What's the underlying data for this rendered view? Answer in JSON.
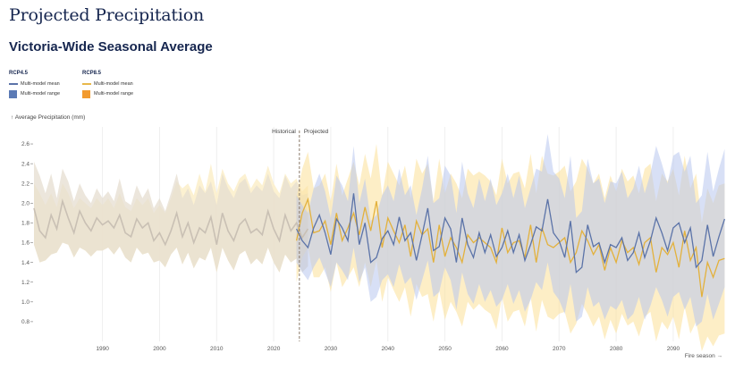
{
  "page": {
    "title": "Projected Precipitation",
    "subtitle": "Victoria-Wide Seasonal Average"
  },
  "legend": {
    "groups": [
      {
        "title": "RCP4.5",
        "mean_label": "Multi-model mean",
        "range_label": "Multi-model range",
        "mean_color": "#5b73a8",
        "range_color": "#5b7ab5"
      },
      {
        "title": "RCP8.5",
        "mean_label": "Multi-model mean",
        "range_label": "Multi-model range",
        "mean_color": "#e8b84a",
        "range_color": "#f29a2e"
      }
    ]
  },
  "chart_data": {
    "type": "area",
    "ylabel": "↑ Average Precipitation (mm)",
    "xlabel": "Fire season →",
    "xlim": [
      1978,
      2098
    ],
    "ylim": [
      0.6,
      2.7
    ],
    "x_ticks": [
      1990,
      2000,
      2010,
      2020,
      2030,
      2040,
      2050,
      2060,
      2070,
      2080,
      2090
    ],
    "y_ticks": [
      0.8,
      1.0,
      1.2,
      1.4,
      1.6,
      1.8,
      2.0,
      2.2,
      2.4,
      2.6
    ],
    "grid": "vertical",
    "divider": {
      "x": 2024.5,
      "left_label": "Historical",
      "right_label": "Projected"
    },
    "colors": {
      "hist_mean": "#c9c0b4",
      "hist_band_beige": "#e6ddd0",
      "hist_band_yellow": "#fbefc9",
      "rcp45_mean": "#5b73a8",
      "rcp45_band": "#b8c7ee",
      "rcp85_mean": "#e3b13c",
      "rcp85_band": "#fbe2a0"
    },
    "historical": {
      "start_year": 1978,
      "mean": [
        1.95,
        1.72,
        1.65,
        1.88,
        1.74,
        2.02,
        1.85,
        1.7,
        1.92,
        1.8,
        1.72,
        1.85,
        1.78,
        1.82,
        1.75,
        1.88,
        1.7,
        1.66,
        1.84,
        1.75,
        1.8,
        1.62,
        1.7,
        1.58,
        1.72,
        1.9,
        1.66,
        1.8,
        1.6,
        1.75,
        1.7,
        1.86,
        1.58,
        1.9,
        1.72,
        1.62,
        1.78,
        1.84,
        1.7,
        1.74,
        1.68,
        1.92,
        1.74,
        1.62,
        1.88,
        1.72,
        1.8,
        1.65,
        1.74
      ],
      "lower": [
        1.58,
        1.4,
        1.42,
        1.48,
        1.5,
        1.6,
        1.58,
        1.45,
        1.55,
        1.52,
        1.46,
        1.52,
        1.52,
        1.55,
        1.48,
        1.56,
        1.45,
        1.4,
        1.55,
        1.48,
        1.5,
        1.4,
        1.42,
        1.35,
        1.48,
        1.55,
        1.38,
        1.5,
        1.34,
        1.45,
        1.42,
        1.55,
        1.3,
        1.55,
        1.42,
        1.32,
        1.48,
        1.52,
        1.38,
        1.44,
        1.38,
        1.55,
        1.4,
        1.3,
        1.48,
        1.4,
        1.44,
        1.3,
        1.36
      ],
      "upper": [
        2.42,
        2.28,
        2.1,
        2.3,
        2.05,
        2.35,
        2.22,
        2.02,
        2.2,
        2.08,
        2.0,
        2.15,
        2.05,
        2.12,
        2.02,
        2.25,
        2.02,
        1.98,
        2.18,
        2.05,
        2.15,
        1.95,
        2.05,
        1.92,
        2.1,
        2.3,
        2.05,
        2.15,
        1.98,
        2.18,
        2.1,
        2.22,
        1.98,
        2.3,
        2.15,
        2.05,
        2.2,
        2.25,
        2.1,
        2.18,
        2.12,
        2.3,
        2.12,
        2.05,
        2.28,
        2.15,
        2.22,
        2.08,
        2.1
      ],
      "upper_yellow": [
        2.2,
        2.1,
        1.98,
        2.1,
        1.96,
        2.2,
        2.1,
        1.95,
        2.05,
        2.0,
        1.95,
        2.05,
        1.98,
        2.05,
        1.95,
        2.1,
        1.96,
        1.92,
        2.05,
        1.98,
        2.05,
        1.9,
        1.98,
        1.9,
        2.05,
        2.22,
        2.15,
        2.2,
        2.08,
        2.3,
        2.12,
        2.4,
        2.1,
        2.35,
        2.2,
        2.12,
        2.25,
        2.3,
        2.15,
        2.25,
        2.18,
        2.38,
        2.2,
        2.1,
        2.3,
        2.2,
        2.25,
        2.12,
        2.18
      ]
    },
    "series": [
      {
        "name": "RCP4.5",
        "start_year": 2024,
        "mean": [
          1.74,
          1.62,
          1.55,
          1.75,
          1.88,
          1.7,
          1.48,
          1.84,
          1.75,
          1.62,
          2.1,
          1.58,
          1.8,
          1.4,
          1.45,
          1.64,
          1.72,
          1.58,
          1.86,
          1.62,
          1.7,
          1.42,
          1.68,
          1.95,
          1.52,
          1.56,
          1.85,
          1.74,
          1.4,
          1.85,
          1.58,
          1.45,
          1.7,
          1.5,
          1.68,
          1.46,
          1.55,
          1.72,
          1.5,
          1.68,
          1.42,
          1.58,
          1.76,
          1.72,
          2.04,
          1.7,
          1.62,
          1.45,
          1.82,
          1.3,
          1.35,
          1.78,
          1.56,
          1.6,
          1.4,
          1.58,
          1.55,
          1.65,
          1.42,
          1.5,
          1.7,
          1.45,
          1.62,
          1.85,
          1.7,
          1.52,
          1.75,
          1.8,
          1.6,
          1.75,
          1.35,
          1.42,
          1.78,
          1.46,
          1.66,
          1.84
        ],
        "lower": [
          1.4,
          1.3,
          1.22,
          1.35,
          1.45,
          1.3,
          1.15,
          1.4,
          1.32,
          1.22,
          1.55,
          1.2,
          1.35,
          1.0,
          1.05,
          1.22,
          1.28,
          1.15,
          1.38,
          1.18,
          1.25,
          1.02,
          1.22,
          1.42,
          1.05,
          1.1,
          1.35,
          1.22,
          0.92,
          1.3,
          1.08,
          0.98,
          1.18,
          1.0,
          1.12,
          0.95,
          1.02,
          1.18,
          0.98,
          1.12,
          0.9,
          1.02,
          1.2,
          1.12,
          1.4,
          1.1,
          1.02,
          0.88,
          1.18,
          0.8,
          0.85,
          1.15,
          0.95,
          1.0,
          0.82,
          0.96,
          0.92,
          1.02,
          0.82,
          0.88,
          1.05,
          0.82,
          0.96,
          1.15,
          1.02,
          0.85,
          1.05,
          1.1,
          0.92,
          1.05,
          0.75,
          0.8,
          1.08,
          0.82,
          0.98,
          1.15
        ],
        "upper": [
          2.08,
          1.98,
          1.9,
          2.15,
          2.3,
          2.12,
          1.85,
          2.28,
          2.18,
          2.02,
          2.58,
          2.0,
          2.25,
          1.82,
          1.88,
          2.08,
          2.18,
          2.02,
          2.35,
          2.08,
          2.18,
          1.88,
          2.15,
          2.48,
          2.0,
          2.05,
          2.38,
          2.28,
          1.9,
          2.42,
          2.1,
          1.95,
          2.25,
          2.02,
          2.25,
          1.98,
          2.1,
          2.3,
          2.05,
          2.28,
          1.95,
          2.15,
          2.35,
          2.32,
          2.7,
          2.32,
          2.25,
          2.05,
          2.48,
          1.85,
          1.92,
          2.45,
          2.2,
          2.25,
          2.0,
          2.22,
          2.2,
          2.32,
          2.05,
          2.15,
          2.38,
          2.1,
          2.3,
          2.58,
          2.4,
          2.2,
          2.48,
          2.52,
          2.32,
          2.48,
          2.0,
          2.08,
          2.52,
          2.12,
          2.35,
          2.55
        ]
      },
      {
        "name": "RCP8.5",
        "start_year": 2024,
        "mean": [
          1.62,
          1.9,
          2.04,
          1.7,
          1.72,
          1.82,
          1.58,
          1.9,
          1.62,
          1.75,
          1.9,
          1.68,
          1.96,
          1.72,
          2.02,
          1.55,
          1.85,
          1.72,
          1.6,
          1.78,
          1.46,
          1.82,
          1.68,
          1.74,
          1.4,
          1.78,
          1.46,
          1.65,
          1.55,
          1.4,
          1.68,
          1.6,
          1.65,
          1.6,
          1.55,
          1.4,
          1.75,
          1.5,
          1.6,
          1.62,
          1.45,
          1.78,
          1.4,
          1.75,
          1.58,
          1.55,
          1.6,
          1.65,
          1.4,
          1.5,
          1.72,
          1.62,
          1.48,
          1.58,
          1.32,
          1.55,
          1.4,
          1.62,
          1.5,
          1.55,
          1.38,
          1.6,
          1.65,
          1.3,
          1.55,
          1.48,
          1.6,
          1.35,
          1.72,
          1.42,
          1.55,
          1.05,
          1.4,
          1.25,
          1.42,
          1.44
        ],
        "lower": [
          1.2,
          1.45,
          1.55,
          1.25,
          1.25,
          1.35,
          1.1,
          1.4,
          1.15,
          1.25,
          1.35,
          1.15,
          1.4,
          1.15,
          1.42,
          1.0,
          1.25,
          1.12,
          1.0,
          1.15,
          0.85,
          1.18,
          1.05,
          1.08,
          0.8,
          1.12,
          0.82,
          1.0,
          0.9,
          0.75,
          1.0,
          0.92,
          0.98,
          0.92,
          0.88,
          0.72,
          1.05,
          0.8,
          0.9,
          0.92,
          0.75,
          1.05,
          0.7,
          1.02,
          0.85,
          0.82,
          0.88,
          0.9,
          0.68,
          0.78,
          0.98,
          0.88,
          0.75,
          0.85,
          0.62,
          0.82,
          0.68,
          0.88,
          0.76,
          0.8,
          0.65,
          0.85,
          0.9,
          0.6,
          0.8,
          0.72,
          0.85,
          0.62,
          0.95,
          0.68,
          0.8,
          0.5,
          0.65,
          0.55,
          0.66,
          0.68
        ],
        "upper": [
          2.05,
          2.35,
          2.52,
          2.15,
          2.18,
          2.3,
          2.02,
          2.4,
          2.08,
          2.25,
          2.42,
          2.18,
          2.5,
          2.25,
          2.6,
          2.08,
          2.42,
          2.3,
          2.18,
          2.38,
          2.05,
          2.45,
          2.3,
          2.4,
          2.02,
          2.45,
          2.1,
          2.3,
          2.2,
          2.05,
          2.35,
          2.28,
          2.32,
          2.28,
          2.22,
          2.08,
          2.45,
          2.2,
          2.3,
          2.32,
          2.15,
          2.5,
          2.1,
          2.48,
          2.3,
          2.28,
          2.32,
          2.38,
          2.12,
          2.22,
          2.45,
          2.35,
          2.2,
          2.3,
          2.05,
          2.28,
          2.12,
          2.35,
          2.22,
          2.28,
          2.1,
          2.35,
          2.4,
          2.02,
          2.3,
          2.22,
          2.35,
          2.08,
          2.48,
          2.15,
          2.3,
          1.8,
          2.15,
          2.0,
          2.18,
          2.2
        ]
      }
    ]
  }
}
